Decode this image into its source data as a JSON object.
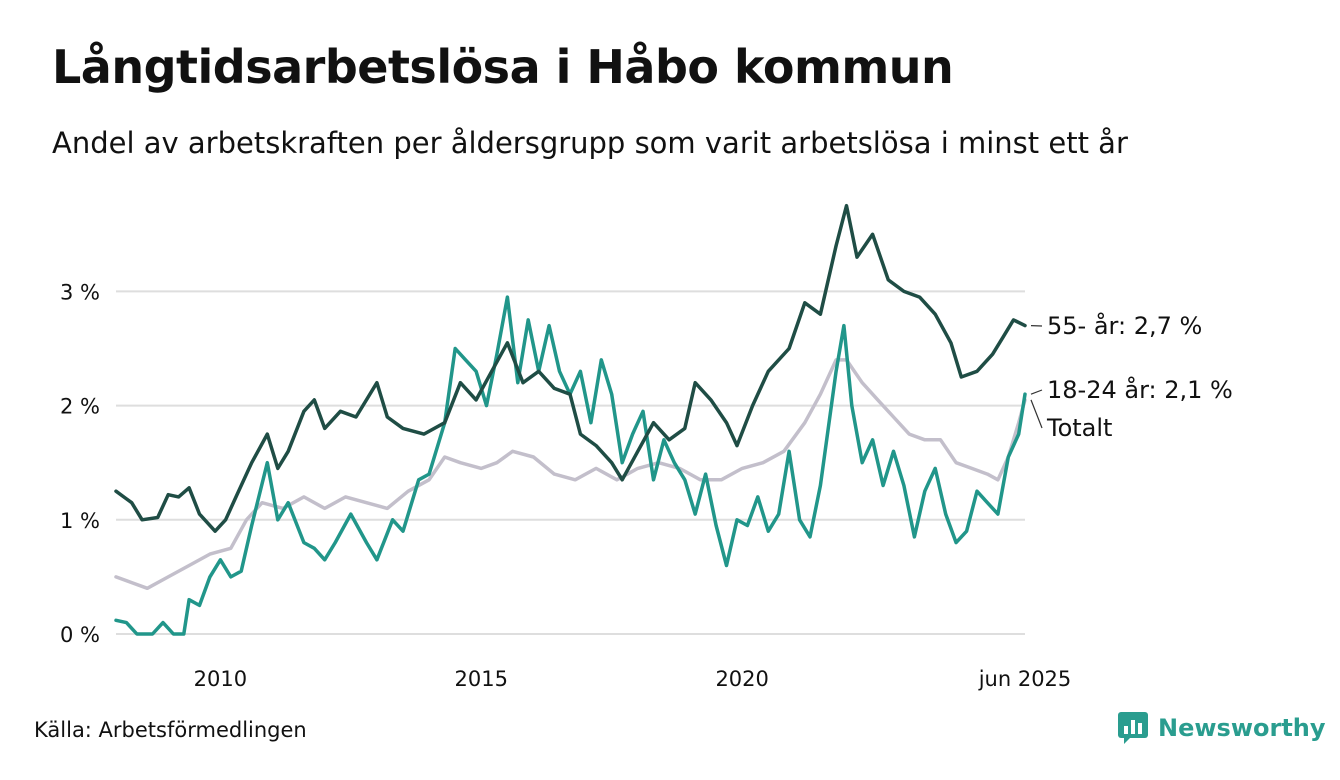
{
  "title": "Långtidsarbetslösa i Håbo kommun",
  "subtitle": "Andel av arbetskraften per åldersgrupp som varit arbetslösa i minst ett år",
  "source": "Källa: Arbetsförmedlingen",
  "brand": "Newsworthy",
  "colors": {
    "s55": "#1f4d45",
    "s1824": "#21968a",
    "total": "#c3bfcb",
    "grid": "#dedede",
    "brand": "#2a9d8f"
  },
  "chart_data": {
    "type": "line",
    "ylim": [
      0,
      3.8
    ],
    "xlim": [
      2008.0,
      2025.42
    ],
    "yticks": [
      0,
      1,
      2,
      3
    ],
    "ytick_labels": [
      "0 %",
      "1 %",
      "2 %",
      "3 %"
    ],
    "xticks": [
      2010,
      2015,
      2020,
      2025.42
    ],
    "xtick_labels": [
      "2010",
      "2015",
      "2020",
      "jun 2025"
    ],
    "grid": true,
    "series": [
      {
        "key": "s55",
        "label": "55- år: 2,7 %",
        "points": [
          [
            2008.0,
            1.25
          ],
          [
            2008.3,
            1.15
          ],
          [
            2008.5,
            1.0
          ],
          [
            2008.8,
            1.02
          ],
          [
            2009.0,
            1.22
          ],
          [
            2009.2,
            1.2
          ],
          [
            2009.4,
            1.28
          ],
          [
            2009.6,
            1.05
          ],
          [
            2009.9,
            0.9
          ],
          [
            2010.1,
            1.0
          ],
          [
            2010.3,
            1.2
          ],
          [
            2010.6,
            1.5
          ],
          [
            2010.9,
            1.75
          ],
          [
            2011.1,
            1.45
          ],
          [
            2011.3,
            1.6
          ],
          [
            2011.6,
            1.95
          ],
          [
            2011.8,
            2.05
          ],
          [
            2012.0,
            1.8
          ],
          [
            2012.3,
            1.95
          ],
          [
            2012.6,
            1.9
          ],
          [
            2013.0,
            2.2
          ],
          [
            2013.2,
            1.9
          ],
          [
            2013.5,
            1.8
          ],
          [
            2013.9,
            1.75
          ],
          [
            2014.3,
            1.85
          ],
          [
            2014.6,
            2.2
          ],
          [
            2014.9,
            2.05
          ],
          [
            2015.2,
            2.3
          ],
          [
            2015.5,
            2.55
          ],
          [
            2015.8,
            2.2
          ],
          [
            2016.1,
            2.3
          ],
          [
            2016.4,
            2.15
          ],
          [
            2016.7,
            2.1
          ],
          [
            2016.9,
            1.75
          ],
          [
            2017.2,
            1.65
          ],
          [
            2017.5,
            1.5
          ],
          [
            2017.7,
            1.35
          ],
          [
            2018.0,
            1.6
          ],
          [
            2018.3,
            1.85
          ],
          [
            2018.6,
            1.7
          ],
          [
            2018.9,
            1.8
          ],
          [
            2019.1,
            2.2
          ],
          [
            2019.4,
            2.05
          ],
          [
            2019.7,
            1.85
          ],
          [
            2019.9,
            1.65
          ],
          [
            2020.2,
            2.0
          ],
          [
            2020.5,
            2.3
          ],
          [
            2020.9,
            2.5
          ],
          [
            2021.2,
            2.9
          ],
          [
            2021.5,
            2.8
          ],
          [
            2021.8,
            3.4
          ],
          [
            2022.0,
            3.75
          ],
          [
            2022.2,
            3.3
          ],
          [
            2022.5,
            3.5
          ],
          [
            2022.8,
            3.1
          ],
          [
            2023.1,
            3.0
          ],
          [
            2023.4,
            2.95
          ],
          [
            2023.7,
            2.8
          ],
          [
            2024.0,
            2.55
          ],
          [
            2024.2,
            2.25
          ],
          [
            2024.5,
            2.3
          ],
          [
            2024.8,
            2.45
          ],
          [
            2025.0,
            2.6
          ],
          [
            2025.2,
            2.75
          ],
          [
            2025.42,
            2.7
          ]
        ]
      },
      {
        "key": "s1824",
        "label": "18-24 år: 2,1 %",
        "points": [
          [
            2008.0,
            0.12
          ],
          [
            2008.2,
            0.1
          ],
          [
            2008.4,
            0.0
          ],
          [
            2008.7,
            0.0
          ],
          [
            2008.9,
            0.1
          ],
          [
            2009.1,
            0.0
          ],
          [
            2009.3,
            0.0
          ],
          [
            2009.4,
            0.3
          ],
          [
            2009.6,
            0.25
          ],
          [
            2009.8,
            0.5
          ],
          [
            2010.0,
            0.65
          ],
          [
            2010.2,
            0.5
          ],
          [
            2010.4,
            0.55
          ],
          [
            2010.6,
            0.95
          ],
          [
            2010.9,
            1.5
          ],
          [
            2011.1,
            1.0
          ],
          [
            2011.3,
            1.15
          ],
          [
            2011.6,
            0.8
          ],
          [
            2011.8,
            0.75
          ],
          [
            2012.0,
            0.65
          ],
          [
            2012.2,
            0.8
          ],
          [
            2012.5,
            1.05
          ],
          [
            2012.8,
            0.8
          ],
          [
            2013.0,
            0.65
          ],
          [
            2013.3,
            1.0
          ],
          [
            2013.5,
            0.9
          ],
          [
            2013.8,
            1.35
          ],
          [
            2014.0,
            1.4
          ],
          [
            2014.3,
            1.85
          ],
          [
            2014.5,
            2.5
          ],
          [
            2014.7,
            2.4
          ],
          [
            2014.9,
            2.3
          ],
          [
            2015.1,
            2.0
          ],
          [
            2015.3,
            2.45
          ],
          [
            2015.5,
            2.95
          ],
          [
            2015.7,
            2.2
          ],
          [
            2015.9,
            2.75
          ],
          [
            2016.1,
            2.3
          ],
          [
            2016.3,
            2.7
          ],
          [
            2016.5,
            2.3
          ],
          [
            2016.7,
            2.1
          ],
          [
            2016.9,
            2.3
          ],
          [
            2017.1,
            1.85
          ],
          [
            2017.3,
            2.4
          ],
          [
            2017.5,
            2.1
          ],
          [
            2017.7,
            1.5
          ],
          [
            2017.9,
            1.75
          ],
          [
            2018.1,
            1.95
          ],
          [
            2018.3,
            1.35
          ],
          [
            2018.5,
            1.7
          ],
          [
            2018.7,
            1.5
          ],
          [
            2018.9,
            1.35
          ],
          [
            2019.1,
            1.05
          ],
          [
            2019.3,
            1.4
          ],
          [
            2019.5,
            0.95
          ],
          [
            2019.7,
            0.6
          ],
          [
            2019.9,
            1.0
          ],
          [
            2020.1,
            0.95
          ],
          [
            2020.3,
            1.2
          ],
          [
            2020.5,
            0.9
          ],
          [
            2020.7,
            1.05
          ],
          [
            2020.9,
            1.6
          ],
          [
            2021.1,
            1.0
          ],
          [
            2021.3,
            0.85
          ],
          [
            2021.5,
            1.3
          ],
          [
            2021.8,
            2.3
          ],
          [
            2021.95,
            2.7
          ],
          [
            2022.1,
            2.0
          ],
          [
            2022.3,
            1.5
          ],
          [
            2022.5,
            1.7
          ],
          [
            2022.7,
            1.3
          ],
          [
            2022.9,
            1.6
          ],
          [
            2023.1,
            1.3
          ],
          [
            2023.3,
            0.85
          ],
          [
            2023.5,
            1.25
          ],
          [
            2023.7,
            1.45
          ],
          [
            2023.9,
            1.05
          ],
          [
            2024.1,
            0.8
          ],
          [
            2024.3,
            0.9
          ],
          [
            2024.5,
            1.25
          ],
          [
            2024.7,
            1.15
          ],
          [
            2024.9,
            1.05
          ],
          [
            2025.1,
            1.55
          ],
          [
            2025.3,
            1.75
          ],
          [
            2025.42,
            2.1
          ]
        ]
      },
      {
        "key": "total",
        "label": "Totalt",
        "points": [
          [
            2008.0,
            0.5
          ],
          [
            2008.3,
            0.45
          ],
          [
            2008.6,
            0.4
          ],
          [
            2009.0,
            0.5
          ],
          [
            2009.4,
            0.6
          ],
          [
            2009.8,
            0.7
          ],
          [
            2010.2,
            0.75
          ],
          [
            2010.5,
            1.0
          ],
          [
            2010.8,
            1.15
          ],
          [
            2011.2,
            1.1
          ],
          [
            2011.6,
            1.2
          ],
          [
            2012.0,
            1.1
          ],
          [
            2012.4,
            1.2
          ],
          [
            2012.8,
            1.15
          ],
          [
            2013.2,
            1.1
          ],
          [
            2013.6,
            1.25
          ],
          [
            2014.0,
            1.35
          ],
          [
            2014.3,
            1.55
          ],
          [
            2014.6,
            1.5
          ],
          [
            2015.0,
            1.45
          ],
          [
            2015.3,
            1.5
          ],
          [
            2015.6,
            1.6
          ],
          [
            2016.0,
            1.55
          ],
          [
            2016.4,
            1.4
          ],
          [
            2016.8,
            1.35
          ],
          [
            2017.2,
            1.45
          ],
          [
            2017.6,
            1.35
          ],
          [
            2018.0,
            1.45
          ],
          [
            2018.4,
            1.5
          ],
          [
            2018.8,
            1.45
          ],
          [
            2019.2,
            1.35
          ],
          [
            2019.6,
            1.35
          ],
          [
            2020.0,
            1.45
          ],
          [
            2020.4,
            1.5
          ],
          [
            2020.8,
            1.6
          ],
          [
            2021.2,
            1.85
          ],
          [
            2021.5,
            2.1
          ],
          [
            2021.8,
            2.4
          ],
          [
            2022.0,
            2.4
          ],
          [
            2022.3,
            2.2
          ],
          [
            2022.6,
            2.05
          ],
          [
            2022.9,
            1.9
          ],
          [
            2023.2,
            1.75
          ],
          [
            2023.5,
            1.7
          ],
          [
            2023.8,
            1.7
          ],
          [
            2024.1,
            1.5
          ],
          [
            2024.4,
            1.45
          ],
          [
            2024.7,
            1.4
          ],
          [
            2024.9,
            1.35
          ],
          [
            2025.1,
            1.55
          ],
          [
            2025.3,
            1.85
          ],
          [
            2025.42,
            2.05
          ]
        ]
      }
    ]
  }
}
